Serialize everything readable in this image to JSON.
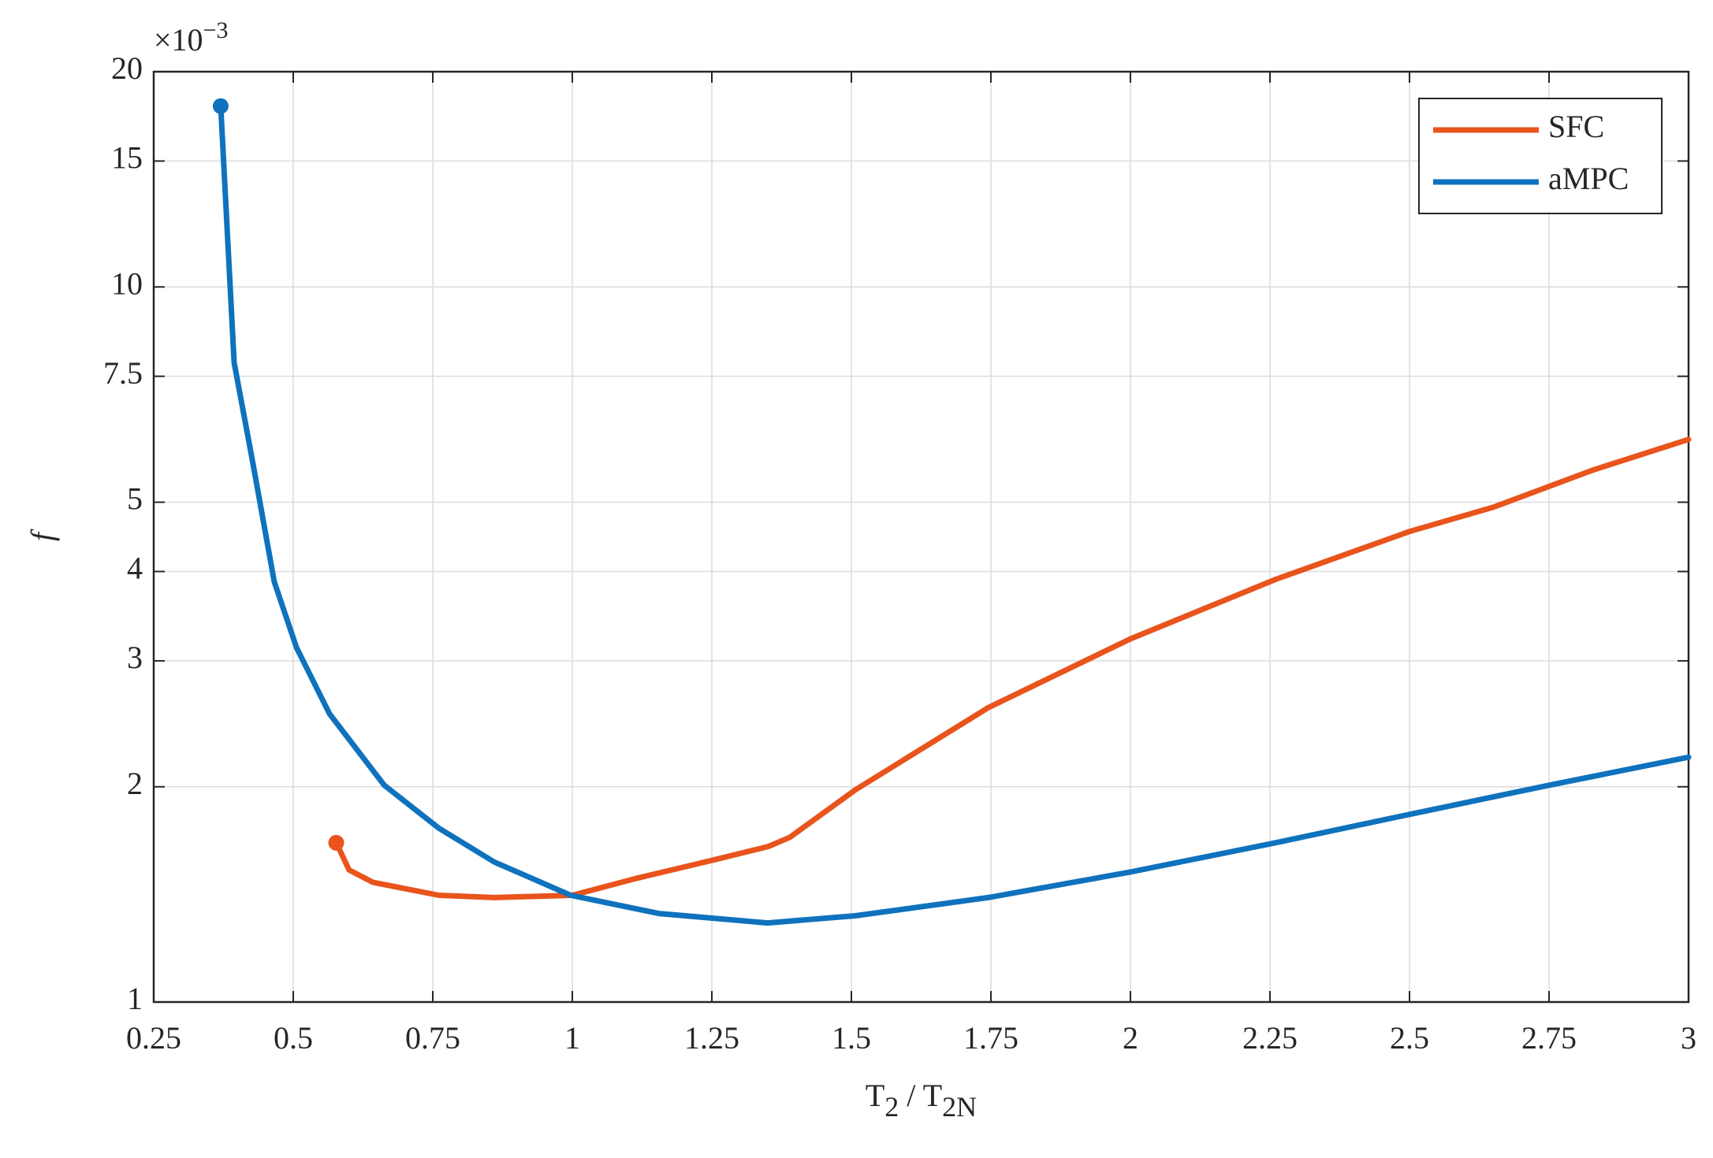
{
  "chart_data": {
    "type": "line",
    "x_label": {
      "base": "T",
      "sub": "2",
      "sep": " / T",
      "sub2": "2N"
    },
    "y_label": "f",
    "axis_multiplier": {
      "base": "×10",
      "exponent": "−3"
    },
    "xlim": [
      0.25,
      3
    ],
    "xticks": [
      0.25,
      0.5,
      0.75,
      1,
      1.25,
      1.5,
      1.75,
      2,
      2.25,
      2.5,
      2.75,
      3
    ],
    "ylim": [
      1,
      20
    ],
    "yticks": [
      1,
      2,
      3,
      4,
      5,
      7.5,
      10,
      15,
      20
    ],
    "y_scale": "log",
    "grid": true,
    "legend": "northeast",
    "series": [
      {
        "name": "SFC",
        "color": "#e8541c",
        "x": [
          0.577,
          0.6,
          0.643,
          0.761,
          0.86,
          1.0,
          1.116,
          1.253,
          1.351,
          1.39,
          1.507,
          1.745,
          2.0,
          2.26,
          2.5,
          2.65,
          2.83,
          3.0
        ],
        "values": [
          1.67,
          1.53,
          1.47,
          1.41,
          1.4,
          1.41,
          1.49,
          1.58,
          1.65,
          1.7,
          1.98,
          2.58,
          3.22,
          3.9,
          4.55,
          4.92,
          5.55,
          6.12
        ]
      },
      {
        "name": "aMPC",
        "color": "#0f72bd",
        "x": [
          0.37,
          0.394,
          0.427,
          0.466,
          0.506,
          0.565,
          0.663,
          0.761,
          0.86,
          0.997,
          1.155,
          1.35,
          1.507,
          1.745,
          2.0,
          2.26,
          2.5,
          2.75,
          3.0
        ],
        "values": [
          17.9,
          7.84,
          5.71,
          3.87,
          3.13,
          2.53,
          2.01,
          1.75,
          1.57,
          1.41,
          1.33,
          1.29,
          1.32,
          1.4,
          1.52,
          1.67,
          1.83,
          2.01,
          2.2
        ]
      }
    ]
  }
}
